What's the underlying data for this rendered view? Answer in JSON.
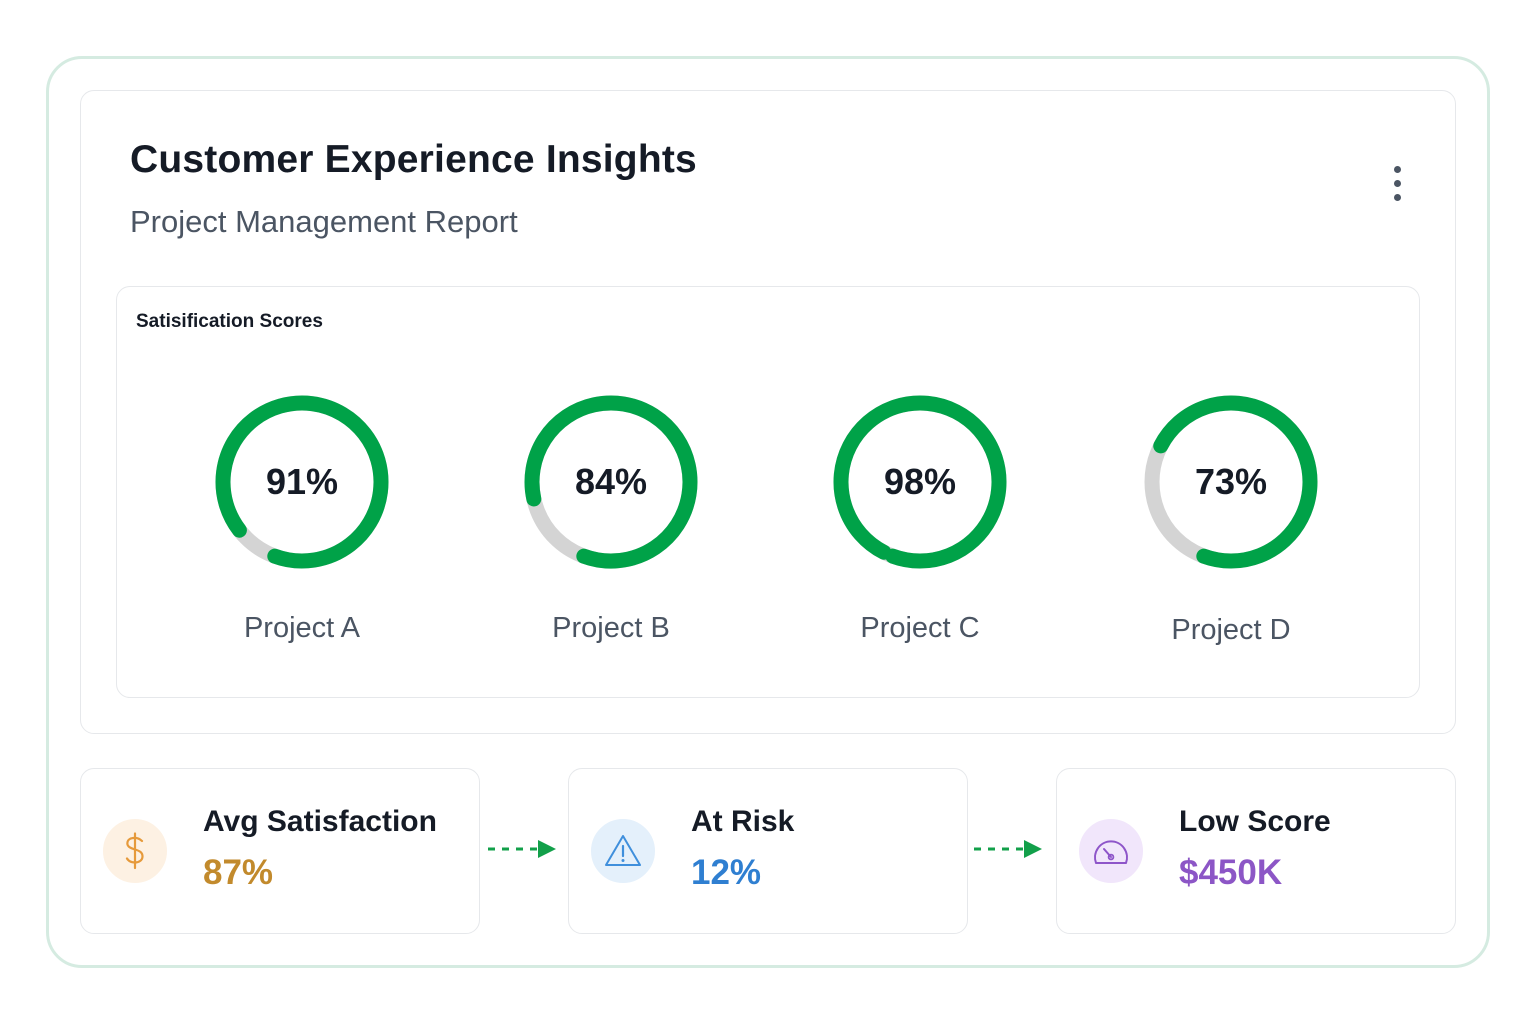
{
  "header": {
    "title": "Customer Experience Insights",
    "subtitle": "Project Management Report",
    "menu_icon": "more-vertical-icon"
  },
  "chart_data": {
    "type": "gauge",
    "title": "Satisification Scores",
    "unit": "%",
    "categories": [
      "Project A",
      "Project B",
      "Project C",
      "Project D"
    ],
    "values": [
      91,
      84,
      98,
      73
    ],
    "value_labels": [
      "91%",
      "84%",
      "98%",
      "73%"
    ],
    "range": [
      0,
      100
    ]
  },
  "stats": [
    {
      "label": "Avg Satisfaction",
      "value": "87%",
      "icon": "dollar-icon",
      "color": "#c28a2c",
      "icon_bg": "#fdf1e3",
      "icon_color": "#e69a3b"
    },
    {
      "label": "At Risk",
      "value": "12%",
      "icon": "warning-icon",
      "color": "#2f7fd1",
      "icon_bg": "#e4f0fb",
      "icon_color": "#3f8fdc"
    },
    {
      "label": "Low Score",
      "value": "$450K",
      "icon": "speedometer-icon",
      "color": "#8c56c6",
      "icon_bg": "#f1e6fb",
      "icon_color": "#8e55c9"
    }
  ],
  "colors": {
    "gauge_fill": "#00a248",
    "gauge_track": "#d4d4d4",
    "arrow": "#12a04a",
    "frame_border": "#d5ebe1"
  }
}
